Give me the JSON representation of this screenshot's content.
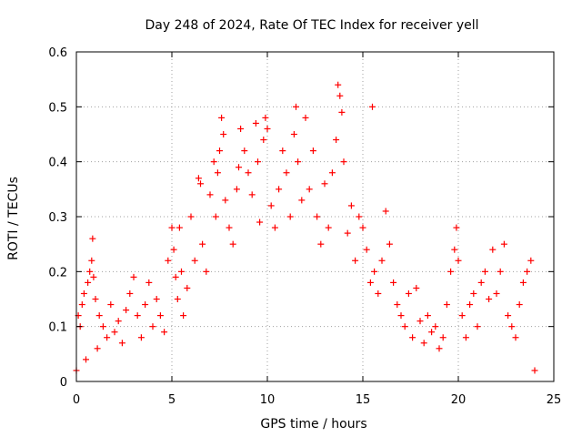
{
  "chart_data": {
    "type": "scatter",
    "title": "Day 248 of 2024, Rate Of TEC Index for receiver yell",
    "xlabel": "GPS time / hours",
    "ylabel": "ROTI / TECUs",
    "xlim": [
      0,
      25
    ],
    "ylim": [
      0,
      0.6
    ],
    "xticks": [
      0,
      5,
      10,
      15,
      20,
      25
    ],
    "yticks": [
      0,
      0.1,
      0.2,
      0.3,
      0.4,
      0.5,
      0.6
    ],
    "xtick_labels": [
      "0",
      "5",
      "10",
      "15",
      "20",
      "25"
    ],
    "ytick_labels": [
      "0",
      "0.1",
      "0.2",
      "0.3",
      "0.4",
      "0.5",
      "0.6"
    ],
    "grid": true,
    "marker": "plus",
    "color": "#ff0000",
    "series": [
      {
        "name": "ROTI",
        "points": [
          [
            0.0,
            0.02
          ],
          [
            0.1,
            0.12
          ],
          [
            0.2,
            0.1
          ],
          [
            0.3,
            0.14
          ],
          [
            0.4,
            0.16
          ],
          [
            0.5,
            0.04
          ],
          [
            0.6,
            0.18
          ],
          [
            0.7,
            0.2
          ],
          [
            0.8,
            0.22
          ],
          [
            0.85,
            0.26
          ],
          [
            0.9,
            0.19
          ],
          [
            1.0,
            0.15
          ],
          [
            1.1,
            0.06
          ],
          [
            1.2,
            0.12
          ],
          [
            1.4,
            0.1
          ],
          [
            1.6,
            0.08
          ],
          [
            1.8,
            0.14
          ],
          [
            2.0,
            0.09
          ],
          [
            2.2,
            0.11
          ],
          [
            2.4,
            0.07
          ],
          [
            2.6,
            0.13
          ],
          [
            2.8,
            0.16
          ],
          [
            3.0,
            0.19
          ],
          [
            3.2,
            0.12
          ],
          [
            3.4,
            0.08
          ],
          [
            3.6,
            0.14
          ],
          [
            3.8,
            0.18
          ],
          [
            4.0,
            0.1
          ],
          [
            4.2,
            0.15
          ],
          [
            4.4,
            0.12
          ],
          [
            4.6,
            0.09
          ],
          [
            4.8,
            0.22
          ],
          [
            5.0,
            0.28
          ],
          [
            5.1,
            0.24
          ],
          [
            5.2,
            0.19
          ],
          [
            5.3,
            0.15
          ],
          [
            5.4,
            0.28
          ],
          [
            5.5,
            0.2
          ],
          [
            5.6,
            0.12
          ],
          [
            5.8,
            0.17
          ],
          [
            6.0,
            0.3
          ],
          [
            6.2,
            0.22
          ],
          [
            6.4,
            0.37
          ],
          [
            6.5,
            0.36
          ],
          [
            6.6,
            0.25
          ],
          [
            6.8,
            0.2
          ],
          [
            7.0,
            0.34
          ],
          [
            7.2,
            0.4
          ],
          [
            7.3,
            0.3
          ],
          [
            7.4,
            0.38
          ],
          [
            7.5,
            0.42
          ],
          [
            7.6,
            0.48
          ],
          [
            7.7,
            0.45
          ],
          [
            7.8,
            0.33
          ],
          [
            8.0,
            0.28
          ],
          [
            8.2,
            0.25
          ],
          [
            8.4,
            0.35
          ],
          [
            8.5,
            0.39
          ],
          [
            8.6,
            0.46
          ],
          [
            8.8,
            0.42
          ],
          [
            9.0,
            0.38
          ],
          [
            9.2,
            0.34
          ],
          [
            9.4,
            0.47
          ],
          [
            9.5,
            0.4
          ],
          [
            9.6,
            0.29
          ],
          [
            9.8,
            0.44
          ],
          [
            9.9,
            0.48
          ],
          [
            10.0,
            0.46
          ],
          [
            10.2,
            0.32
          ],
          [
            10.4,
            0.28
          ],
          [
            10.6,
            0.35
          ],
          [
            10.8,
            0.42
          ],
          [
            11.0,
            0.38
          ],
          [
            11.2,
            0.3
          ],
          [
            11.4,
            0.45
          ],
          [
            11.5,
            0.5
          ],
          [
            11.6,
            0.4
          ],
          [
            11.8,
            0.33
          ],
          [
            12.0,
            0.48
          ],
          [
            12.2,
            0.35
          ],
          [
            12.4,
            0.42
          ],
          [
            12.6,
            0.3
          ],
          [
            12.8,
            0.25
          ],
          [
            13.0,
            0.36
          ],
          [
            13.2,
            0.28
          ],
          [
            13.4,
            0.38
          ],
          [
            13.6,
            0.44
          ],
          [
            13.7,
            0.54
          ],
          [
            13.8,
            0.52
          ],
          [
            13.9,
            0.49
          ],
          [
            14.0,
            0.4
          ],
          [
            14.2,
            0.27
          ],
          [
            14.4,
            0.32
          ],
          [
            14.6,
            0.22
          ],
          [
            14.8,
            0.3
          ],
          [
            15.0,
            0.28
          ],
          [
            15.2,
            0.24
          ],
          [
            15.4,
            0.18
          ],
          [
            15.5,
            0.5
          ],
          [
            15.6,
            0.2
          ],
          [
            15.8,
            0.16
          ],
          [
            16.0,
            0.22
          ],
          [
            16.2,
            0.31
          ],
          [
            16.4,
            0.25
          ],
          [
            16.6,
            0.18
          ],
          [
            16.8,
            0.14
          ],
          [
            17.0,
            0.12
          ],
          [
            17.2,
            0.1
          ],
          [
            17.4,
            0.16
          ],
          [
            17.6,
            0.08
          ],
          [
            17.8,
            0.17
          ],
          [
            18.0,
            0.11
          ],
          [
            18.2,
            0.07
          ],
          [
            18.4,
            0.12
          ],
          [
            18.6,
            0.09
          ],
          [
            18.8,
            0.1
          ],
          [
            19.0,
            0.06
          ],
          [
            19.2,
            0.08
          ],
          [
            19.4,
            0.14
          ],
          [
            19.6,
            0.2
          ],
          [
            19.8,
            0.24
          ],
          [
            19.9,
            0.28
          ],
          [
            20.0,
            0.22
          ],
          [
            20.2,
            0.12
          ],
          [
            20.4,
            0.08
          ],
          [
            20.6,
            0.14
          ],
          [
            20.8,
            0.16
          ],
          [
            21.0,
            0.1
          ],
          [
            21.2,
            0.18
          ],
          [
            21.4,
            0.2
          ],
          [
            21.6,
            0.15
          ],
          [
            21.8,
            0.24
          ],
          [
            22.0,
            0.16
          ],
          [
            22.2,
            0.2
          ],
          [
            22.4,
            0.25
          ],
          [
            22.6,
            0.12
          ],
          [
            22.8,
            0.1
          ],
          [
            23.0,
            0.08
          ],
          [
            23.2,
            0.14
          ],
          [
            23.4,
            0.18
          ],
          [
            23.6,
            0.2
          ],
          [
            23.8,
            0.22
          ],
          [
            24.0,
            0.02
          ]
        ]
      }
    ]
  }
}
